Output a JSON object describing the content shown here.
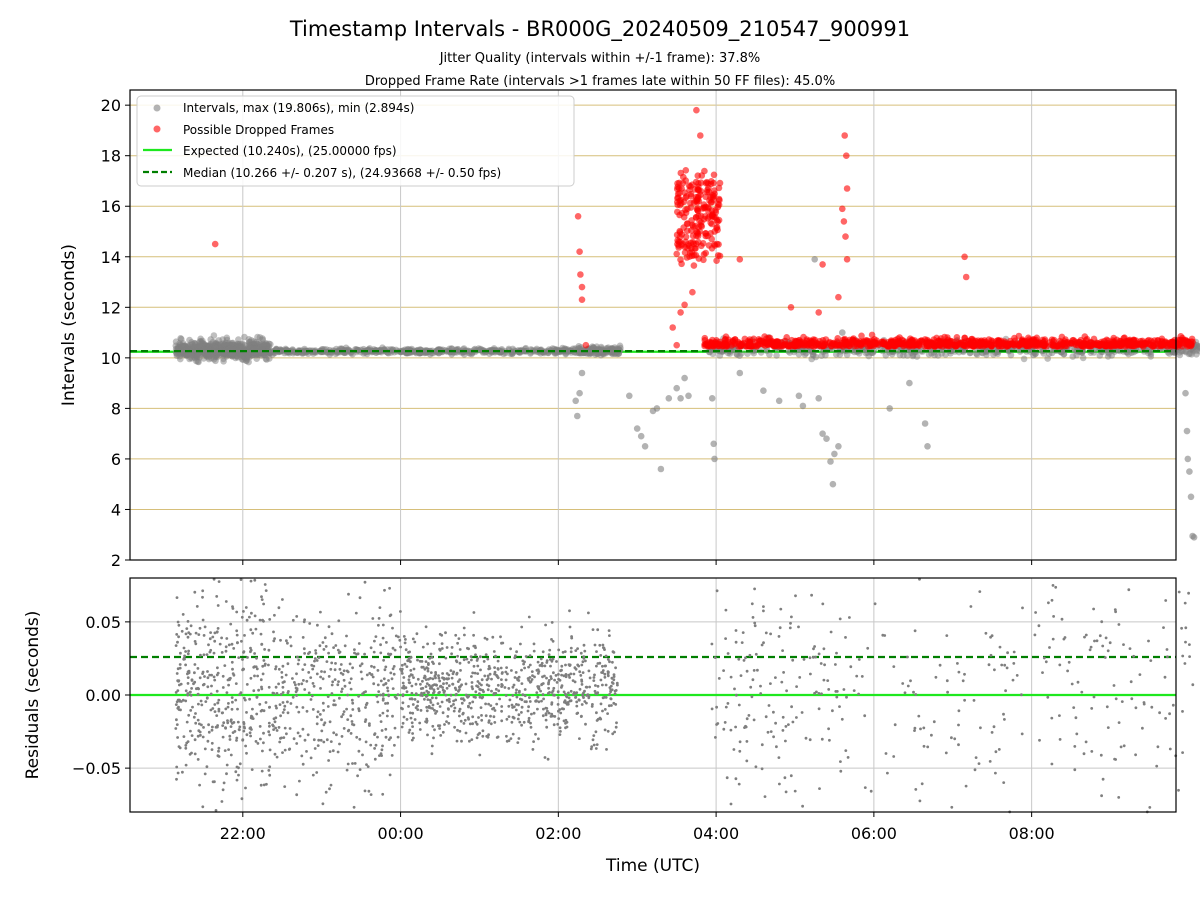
{
  "chart_data": [
    {
      "type": "scatter",
      "title": "Timestamp Intervals - BR000G_20240509_210547_900991",
      "subtitle_lines": [
        "Jitter Quality (intervals within +/-1 frame): 37.8%",
        "Dropped Frame Rate (intervals >1 frames late within 50 FF files): 45.0%"
      ],
      "ylabel": "Intervals (seconds)",
      "xlabel": "",
      "x_unit": "hours UTC from 22:00 previous day (negative = before 22:00 is not used; ticks labeled HH:MM)",
      "xlim_hours": [
        -1.43,
        11.83
      ],
      "ylim": [
        2,
        20.6
      ],
      "yticks": [
        "2",
        "4",
        "6",
        "8",
        "10",
        "12",
        "14",
        "16",
        "18",
        "20"
      ],
      "ytick_values": [
        2,
        4,
        6,
        8,
        10,
        12,
        14,
        16,
        18,
        20
      ],
      "grid": true,
      "legend_placement": "upper-left",
      "legend": [
        {
          "label": "Intervals, max (19.806s), min (2.894s)",
          "kind": "gray-point",
          "color": "#808080"
        },
        {
          "label": "Possible Dropped Frames",
          "kind": "red-point",
          "color": "#ff0000"
        },
        {
          "label": "Expected (10.240s), (25.00000 fps)",
          "kind": "solid-line",
          "color": "#1ee81e"
        },
        {
          "label": "Median (10.266 +/- 0.207 s), (24.93668 +/- 0.50 fps)",
          "kind": "dashed-line",
          "color": "#007f00"
        }
      ],
      "reference_lines": {
        "expected": 10.24,
        "median": 10.266
      },
      "series": [
        {
          "name": "Intervals, max (19.806s), min (2.894s)",
          "color": "#808080",
          "segments": [
            {
              "x_range": [
                -0.85,
                0.35
              ],
              "center": 10.3,
              "spread": 0.35,
              "count": 620
            },
            {
              "x_range": [
                0.35,
                4.25
              ],
              "center": 10.26,
              "spread": 0.1,
              "count": 480
            },
            {
              "x_range": [
                4.25,
                4.8
              ],
              "center": 10.28,
              "spread": 0.15,
              "count": 140
            },
            {
              "x_range": [
                5.9,
                12.15
              ],
              "center": 10.35,
              "spread": 0.28,
              "count": 560
            }
          ],
          "outliers": [
            [
              4.22,
              8.3
            ],
            [
              4.24,
              7.7
            ],
            [
              4.27,
              8.6
            ],
            [
              4.3,
              9.4
            ],
            [
              4.9,
              8.5
            ],
            [
              5.0,
              7.2
            ],
            [
              5.05,
              6.9
            ],
            [
              5.1,
              6.5
            ],
            [
              5.2,
              7.9
            ],
            [
              5.25,
              8.0
            ],
            [
              5.3,
              5.6
            ],
            [
              5.4,
              8.4
            ],
            [
              5.5,
              8.8
            ],
            [
              5.55,
              8.4
            ],
            [
              5.6,
              9.2
            ],
            [
              5.65,
              8.5
            ],
            [
              5.95,
              8.4
            ],
            [
              5.97,
              6.6
            ],
            [
              5.98,
              6.0
            ],
            [
              6.3,
              9.4
            ],
            [
              6.6,
              8.7
            ],
            [
              6.8,
              8.3
            ],
            [
              7.05,
              8.5
            ],
            [
              7.1,
              8.1
            ],
            [
              7.25,
              13.9
            ],
            [
              7.3,
              8.4
            ],
            [
              7.35,
              7.0
            ],
            [
              7.4,
              6.8
            ],
            [
              7.45,
              5.9
            ],
            [
              7.48,
              5.0
            ],
            [
              7.5,
              6.2
            ],
            [
              7.55,
              6.5
            ],
            [
              7.6,
              11.0
            ],
            [
              8.2,
              8.0
            ],
            [
              8.45,
              9.0
            ],
            [
              8.65,
              7.4
            ],
            [
              8.68,
              6.5
            ],
            [
              11.95,
              8.6
            ],
            [
              11.97,
              7.1
            ],
            [
              11.98,
              6.0
            ],
            [
              12.0,
              5.5
            ],
            [
              12.02,
              4.5
            ],
            [
              12.04,
              2.95
            ],
            [
              12.06,
              2.9
            ]
          ]
        },
        {
          "name": "Possible Dropped Frames",
          "color": "#ff0000",
          "segments": [
            {
              "x_range": [
                5.5,
                6.05
              ],
              "center": 15.6,
              "spread": 1.6,
              "count": 210
            },
            {
              "x_range": [
                5.85,
                12.05
              ],
              "center": 10.45,
              "spread": 0.18,
              "count": 900
            }
          ],
          "outliers": [
            [
              -0.35,
              14.5
            ],
            [
              4.25,
              15.6
            ],
            [
              4.27,
              14.2
            ],
            [
              4.28,
              13.3
            ],
            [
              4.3,
              12.8
            ],
            [
              4.3,
              12.3
            ],
            [
              4.35,
              10.5
            ],
            [
              5.45,
              11.2
            ],
            [
              5.5,
              10.5
            ],
            [
              5.55,
              11.8
            ],
            [
              5.6,
              12.1
            ],
            [
              5.7,
              12.6
            ],
            [
              5.75,
              19.8
            ],
            [
              5.8,
              18.8
            ],
            [
              6.3,
              13.9
            ],
            [
              6.95,
              12.0
            ],
            [
              7.3,
              11.8
            ],
            [
              7.35,
              13.7
            ],
            [
              7.55,
              12.4
            ],
            [
              7.63,
              18.8
            ],
            [
              7.65,
              18.0
            ],
            [
              7.66,
              16.7
            ],
            [
              7.6,
              15.9
            ],
            [
              7.62,
              15.4
            ],
            [
              7.64,
              14.8
            ],
            [
              7.66,
              13.9
            ],
            [
              9.15,
              14.0
            ],
            [
              9.17,
              13.2
            ]
          ]
        }
      ]
    },
    {
      "type": "scatter",
      "title": "",
      "ylabel": "Residuals (seconds)",
      "xlabel": "Time (UTC)",
      "xticks": [
        "22:00",
        "00:00",
        "02:00",
        "04:00",
        "06:00",
        "08:00"
      ],
      "xtick_hours": [
        0,
        2,
        4,
        6,
        8,
        10
      ],
      "ylim": [
        -0.08,
        0.08
      ],
      "yticks": [
        "−0.05",
        "0.00",
        "0.05"
      ],
      "ytick_values": [
        -0.05,
        0.0,
        0.05
      ],
      "grid": true,
      "reference_lines": {
        "expected": 0.0,
        "median": 0.026
      },
      "series": [
        {
          "name": "residuals",
          "color": "#7f7f7f",
          "segments": [
            {
              "x_range": [
                -0.85,
                0.35
              ],
              "center": 0.0,
              "spread": 0.04,
              "count": 420
            },
            {
              "x_range": [
                0.35,
                2.0
              ],
              "center": 0.0,
              "spread": 0.03,
              "count": 380
            },
            {
              "x_range": [
                2.0,
                4.75
              ],
              "center": 0.005,
              "spread": 0.018,
              "count": 820
            },
            {
              "x_range": [
                5.9,
                7.6
              ],
              "center": 0.0,
              "spread": 0.04,
              "count": 160
            },
            {
              "x_range": [
                7.6,
                12.05
              ],
              "center": 0.0,
              "spread": 0.045,
              "count": 220
            }
          ]
        }
      ]
    }
  ]
}
